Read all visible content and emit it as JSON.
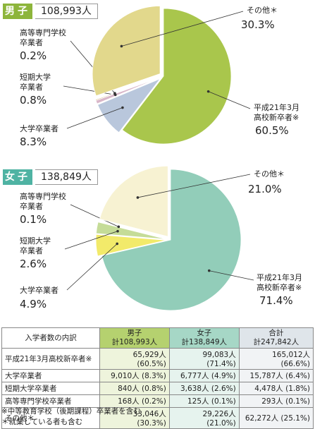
{
  "chart_data": [
    {
      "type": "pie",
      "title": "男子",
      "subtitle": "108,993人",
      "categories": [
        "平成21年3月\n高校新卒者※",
        "大学卒業者",
        "短期大学\n卒業者",
        "高等専門学校\n卒業者",
        "その他＊"
      ],
      "values": [
        60.5,
        8.3,
        0.8,
        0.2,
        30.3
      ],
      "value_labels": [
        "60.5%",
        "8.3%",
        "0.8%",
        "0.2%",
        "30.3%"
      ],
      "colors": [
        "#a9c64c",
        "#b9c7dc",
        "#d9b7c9",
        "#c49a48",
        "#e2d88c"
      ],
      "badge_color": "#8db53b"
    },
    {
      "type": "pie",
      "title": "女子",
      "subtitle": "138,849人",
      "categories": [
        "平成21年3月\n高校新卒者※",
        "大学卒業者",
        "短期大学\n卒業者",
        "高等専門学校\n卒業者",
        "その他＊"
      ],
      "values": [
        71.4,
        4.9,
        2.6,
        0.1,
        21.0
      ],
      "value_labels": [
        "71.4%",
        "4.9%",
        "2.6%",
        "0.1%",
        "21.0%"
      ],
      "colors": [
        "#92cdb9",
        "#f2ea6a",
        "#c5dc98",
        "#d9867c",
        "#f7f2d2"
      ],
      "badge_color": "#4fb3a3"
    }
  ],
  "table": {
    "header": [
      "入学者数の内訳",
      "男子\n計108,993人",
      "女子\n計138,849人",
      "合計\n計247,842人"
    ],
    "rows": [
      [
        "平成21年3月高校新卒者※",
        "65,929人 (60.5%)",
        "99,083人 (71.4%)",
        "165,012人 (66.6%)"
      ],
      [
        "大学卒業者",
        "9,010人 (8.3%)",
        "6,777人 (4.9%)",
        "15,787人 (6.4%)"
      ],
      [
        "短期大学卒業者",
        "840人 (0.8%)",
        "3,638人 (2.6%)",
        "4,478人 (1.8%)"
      ],
      [
        "高等専門学校卒業者",
        "168人 (0.2%)",
        "125人 (0.1%)",
        "293人 (0.1%)"
      ],
      [
        "その他＊",
        "33,046人 (30.3%)",
        "29,226人 (21.0%)",
        "62,272人 (25.1%)"
      ]
    ]
  },
  "notes": [
    "※中等教育学校（後期課程）卒業者を含む",
    "＊就業している者も含む"
  ]
}
